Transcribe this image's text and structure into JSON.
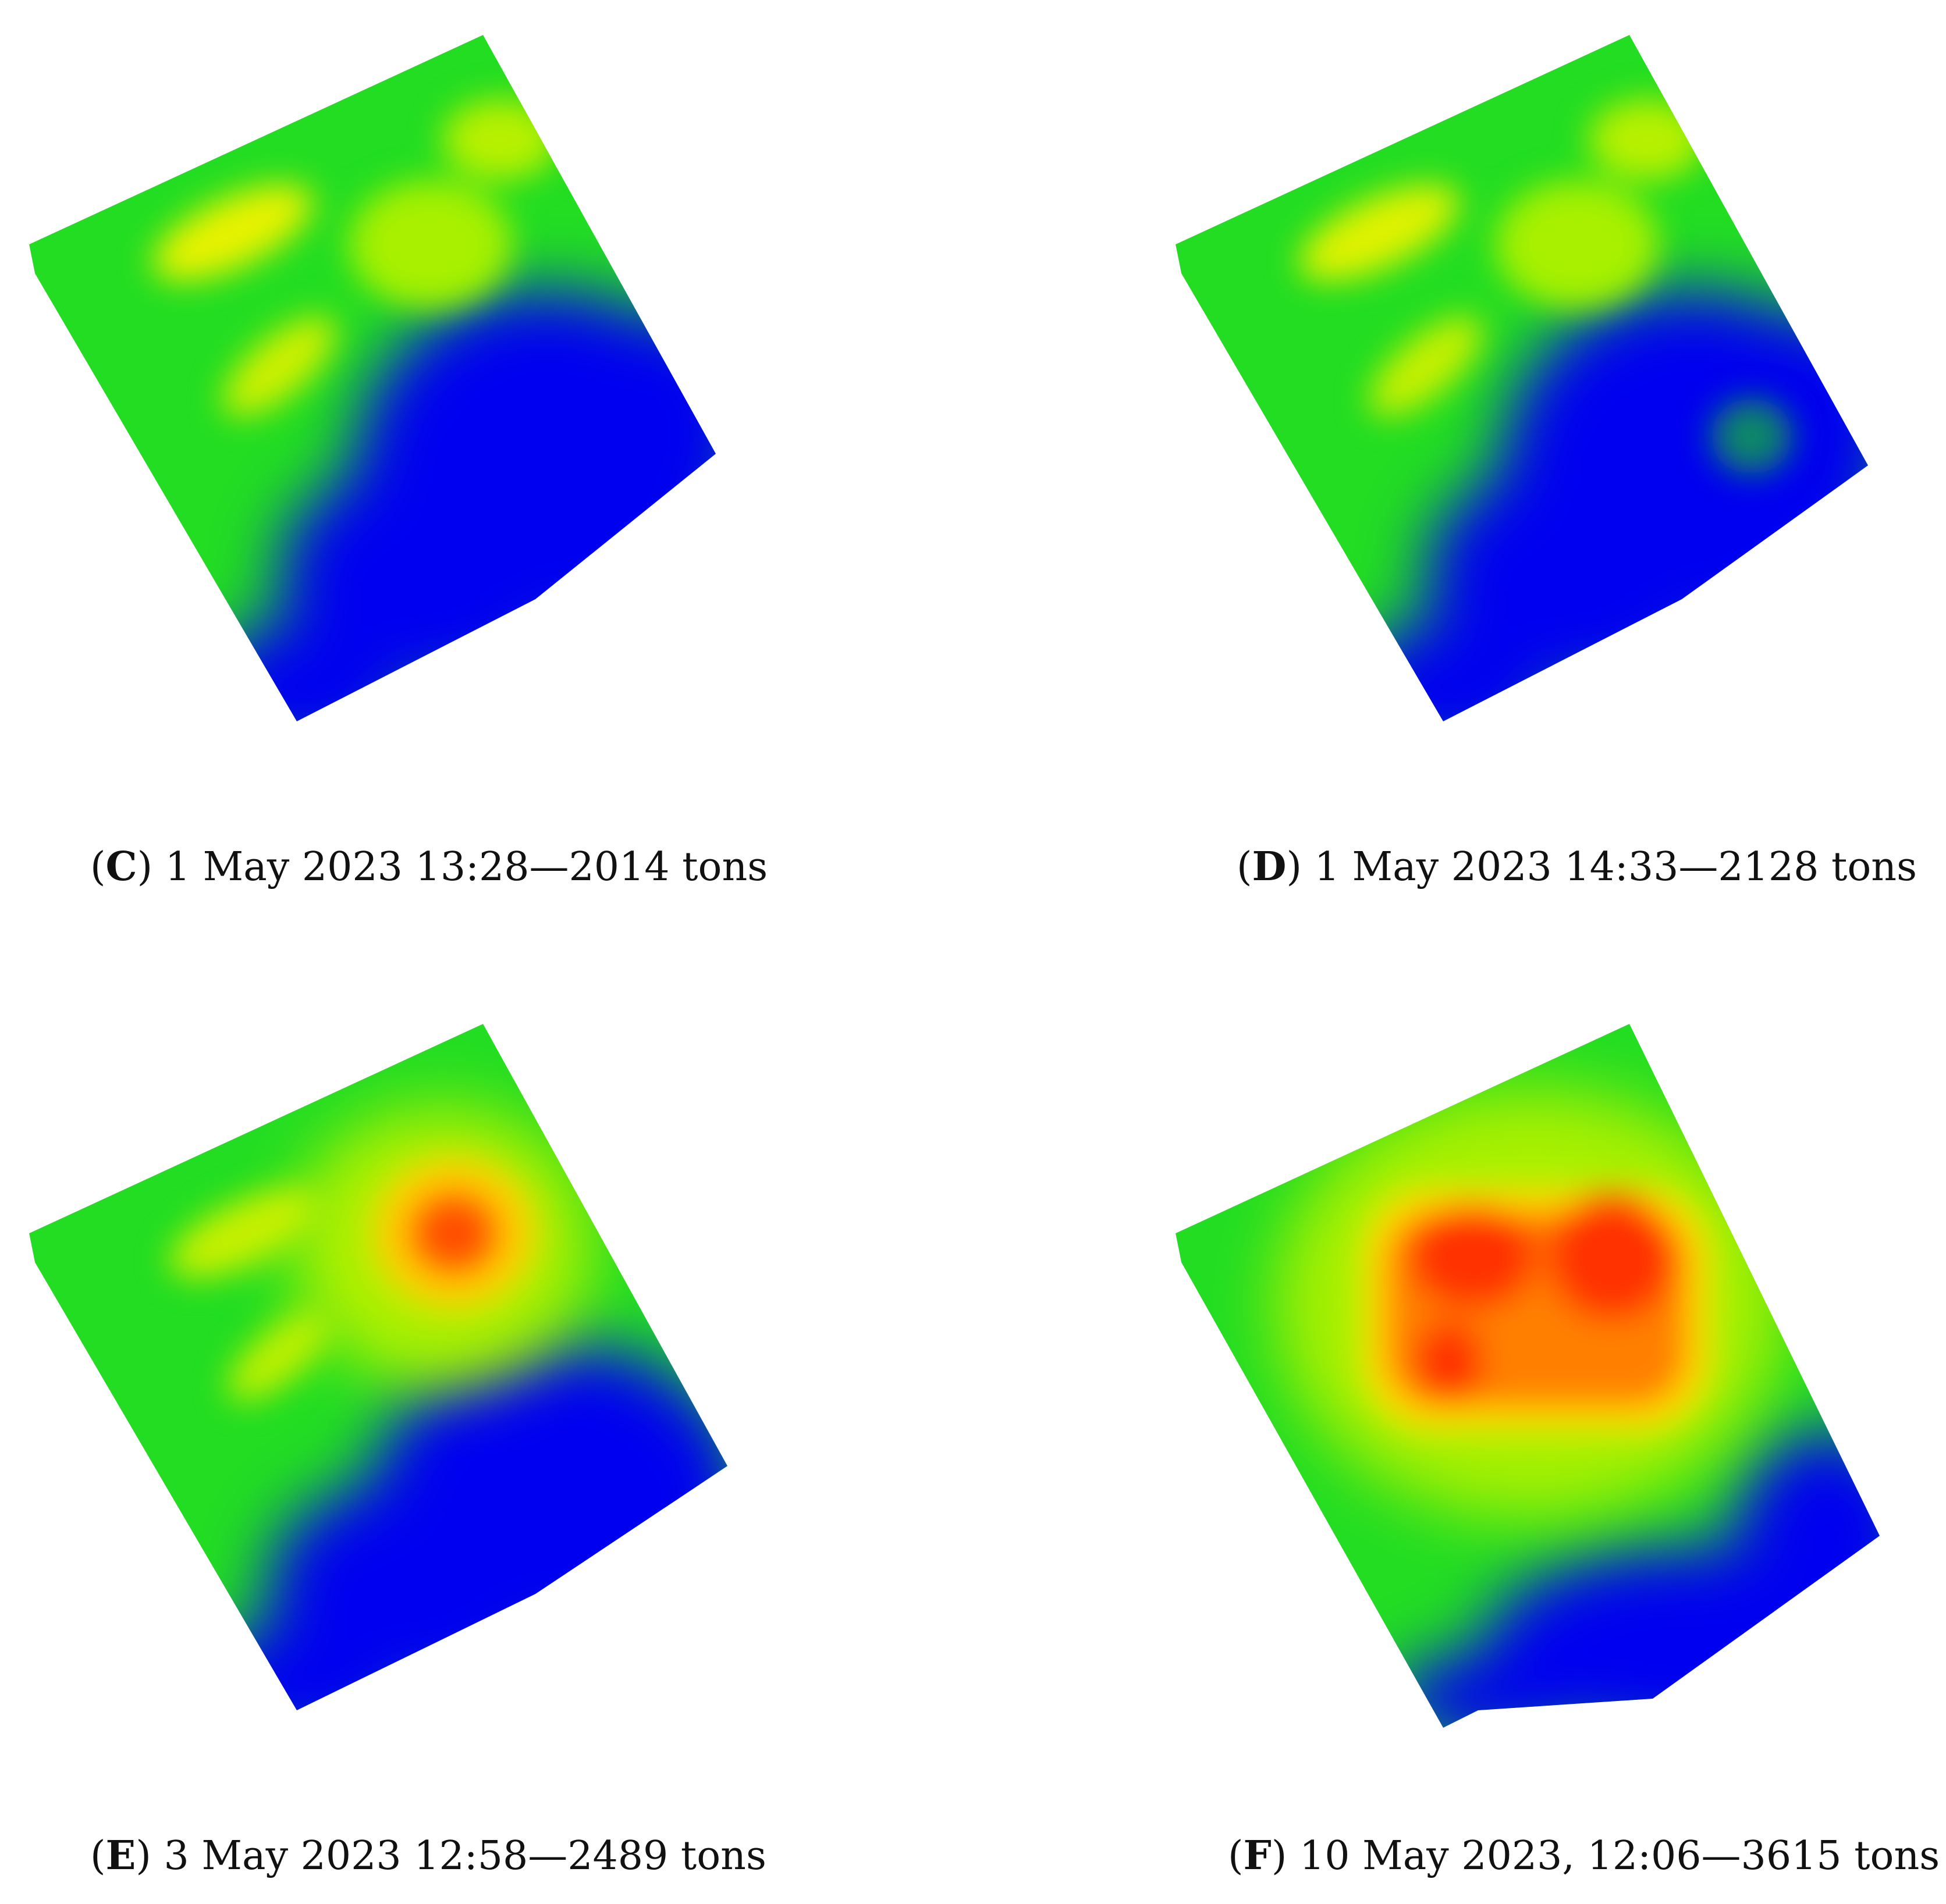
{
  "panels": [
    {
      "id": "C",
      "paren_open": "(",
      "letter": "C",
      "paren_close": ")",
      "text": " 1 May 2023 13:28—2014 tons"
    },
    {
      "id": "D",
      "paren_open": "(",
      "letter": "D",
      "paren_close": ")",
      "text": " 1 May 2023 14:33—2128 tons"
    },
    {
      "id": "E",
      "paren_open": "(",
      "letter": "E",
      "paren_close": ")",
      "text": " 3 May 2023 12:58—2489 tons"
    },
    {
      "id": "F",
      "paren_open": "(",
      "letter": "F",
      "paren_close": ")",
      "text": " 10 May 2023, 12:06—3615 tons"
    }
  ],
  "colors": {
    "low": "#0000f0",
    "mid": "#22dd22",
    "high_yellow": "#e8f200",
    "peak": "#ff3000",
    "gap": "#c8c8d0"
  }
}
